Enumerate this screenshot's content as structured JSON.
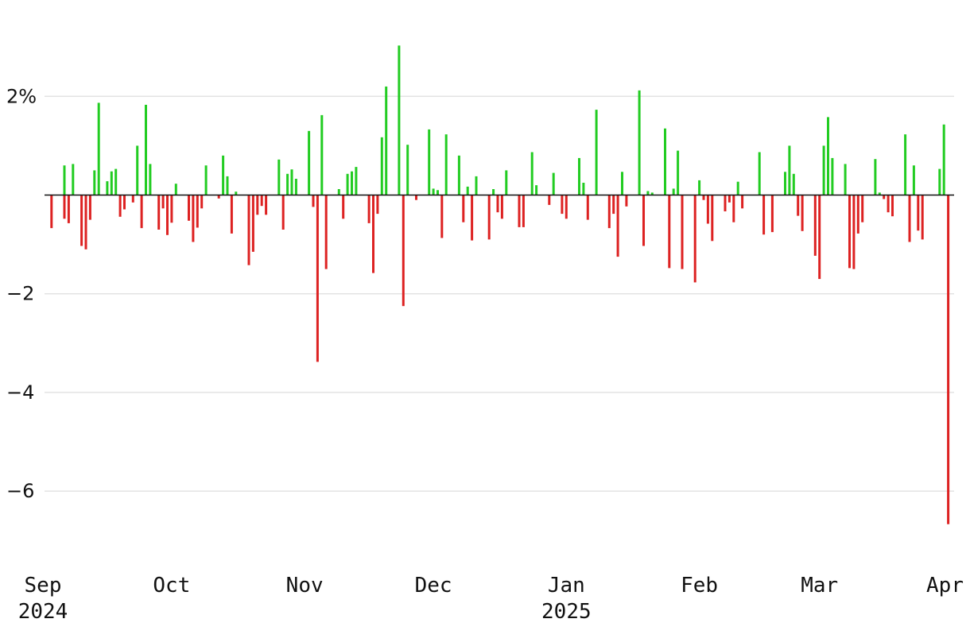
{
  "chart_data": {
    "type": "bar",
    "title": "",
    "xlabel": "",
    "ylabel": "",
    "ylim": [
      -7.5,
      3.5
    ],
    "y_ticks": [
      {
        "value": 2,
        "label": "2%"
      },
      {
        "value": -2,
        "label": "−2"
      },
      {
        "value": -4,
        "label": "−4"
      },
      {
        "value": -6,
        "label": "−6"
      }
    ],
    "x_ticks": [
      {
        "date": "2024-09-01",
        "label": "Sep",
        "year": "2024"
      },
      {
        "date": "2024-10-01",
        "label": "Oct",
        "year": ""
      },
      {
        "date": "2024-11-01",
        "label": "Nov",
        "year": ""
      },
      {
        "date": "2024-12-01",
        "label": "Dec",
        "year": ""
      },
      {
        "date": "2025-01-01",
        "label": "Jan",
        "year": "2025"
      },
      {
        "date": "2025-02-01",
        "label": "Feb",
        "year": ""
      },
      {
        "date": "2025-03-01",
        "label": "Mar",
        "year": ""
      },
      {
        "date": "2025-04-01",
        "label": "Apr",
        "year": ""
      }
    ],
    "grid": true,
    "colors": {
      "positive": "#22cc22",
      "negative": "#dd2222"
    },
    "points": [
      {
        "x": "2024-09-03",
        "y": -0.67
      },
      {
        "x": "2024-09-06",
        "y": 0.6
      },
      {
        "x": "2024-09-06",
        "y": -0.48
      },
      {
        "x": "2024-09-07",
        "y": -0.57
      },
      {
        "x": "2024-09-08",
        "y": 0.63
      },
      {
        "x": "2024-09-10",
        "y": -1.03
      },
      {
        "x": "2024-09-11",
        "y": -1.1
      },
      {
        "x": "2024-09-12",
        "y": -0.5
      },
      {
        "x": "2024-09-13",
        "y": 0.5
      },
      {
        "x": "2024-09-14",
        "y": 1.87
      },
      {
        "x": "2024-09-16",
        "y": 0.28
      },
      {
        "x": "2024-09-17",
        "y": 0.48
      },
      {
        "x": "2024-09-18",
        "y": 0.53
      },
      {
        "x": "2024-09-19",
        "y": -0.44
      },
      {
        "x": "2024-09-20",
        "y": -0.29
      },
      {
        "x": "2024-09-22",
        "y": -0.15
      },
      {
        "x": "2024-09-23",
        "y": 1.0
      },
      {
        "x": "2024-09-24",
        "y": -0.67
      },
      {
        "x": "2024-09-25",
        "y": 1.83
      },
      {
        "x": "2024-09-26",
        "y": 0.63
      },
      {
        "x": "2024-09-28",
        "y": -0.7
      },
      {
        "x": "2024-09-29",
        "y": -0.27
      },
      {
        "x": "2024-09-30",
        "y": -0.81
      },
      {
        "x": "2024-10-01",
        "y": -0.56
      },
      {
        "x": "2024-10-02",
        "y": 0.23
      },
      {
        "x": "2024-10-05",
        "y": -0.52
      },
      {
        "x": "2024-10-06",
        "y": -0.95
      },
      {
        "x": "2024-10-07",
        "y": -0.66
      },
      {
        "x": "2024-10-08",
        "y": -0.27
      },
      {
        "x": "2024-10-09",
        "y": 0.6
      },
      {
        "x": "2024-10-12",
        "y": -0.07
      },
      {
        "x": "2024-10-13",
        "y": 0.8
      },
      {
        "x": "2024-10-14",
        "y": 0.38
      },
      {
        "x": "2024-10-15",
        "y": -0.78
      },
      {
        "x": "2024-10-16",
        "y": 0.07
      },
      {
        "x": "2024-10-19",
        "y": -1.42
      },
      {
        "x": "2024-10-20",
        "y": -1.15
      },
      {
        "x": "2024-10-21",
        "y": -0.4
      },
      {
        "x": "2024-10-22",
        "y": -0.22
      },
      {
        "x": "2024-10-23",
        "y": -0.4
      },
      {
        "x": "2024-10-26",
        "y": 0.72
      },
      {
        "x": "2024-10-27",
        "y": -0.7
      },
      {
        "x": "2024-10-28",
        "y": 0.43
      },
      {
        "x": "2024-10-29",
        "y": 0.52
      },
      {
        "x": "2024-10-30",
        "y": 0.33
      },
      {
        "x": "2024-11-02",
        "y": 1.3
      },
      {
        "x": "2024-11-03",
        "y": -0.24
      },
      {
        "x": "2024-11-04",
        "y": -3.38
      },
      {
        "x": "2024-11-05",
        "y": 1.62
      },
      {
        "x": "2024-11-06",
        "y": -1.5
      },
      {
        "x": "2024-11-09",
        "y": 0.12
      },
      {
        "x": "2024-11-10",
        "y": -0.48
      },
      {
        "x": "2024-11-11",
        "y": 0.43
      },
      {
        "x": "2024-11-12",
        "y": 0.48
      },
      {
        "x": "2024-11-13",
        "y": 0.57
      },
      {
        "x": "2024-11-16",
        "y": -0.57
      },
      {
        "x": "2024-11-17",
        "y": -1.58
      },
      {
        "x": "2024-11-18",
        "y": -0.38
      },
      {
        "x": "2024-11-19",
        "y": 1.17
      },
      {
        "x": "2024-11-20",
        "y": 2.2
      },
      {
        "x": "2024-11-23",
        "y": 3.03
      },
      {
        "x": "2024-11-24",
        "y": -2.25
      },
      {
        "x": "2024-11-25",
        "y": 1.02
      },
      {
        "x": "2024-11-27",
        "y": -0.1
      },
      {
        "x": "2024-11-30",
        "y": 1.33
      },
      {
        "x": "2024-12-01",
        "y": 0.13
      },
      {
        "x": "2024-12-02",
        "y": 0.1
      },
      {
        "x": "2024-12-03",
        "y": -0.87
      },
      {
        "x": "2024-12-04",
        "y": 1.23
      },
      {
        "x": "2024-12-07",
        "y": 0.8
      },
      {
        "x": "2024-12-08",
        "y": -0.55
      },
      {
        "x": "2024-12-09",
        "y": 0.17
      },
      {
        "x": "2024-12-10",
        "y": -0.92
      },
      {
        "x": "2024-12-11",
        "y": 0.38
      },
      {
        "x": "2024-12-14",
        "y": -0.9
      },
      {
        "x": "2024-12-15",
        "y": 0.12
      },
      {
        "x": "2024-12-16",
        "y": -0.35
      },
      {
        "x": "2024-12-17",
        "y": -0.48
      },
      {
        "x": "2024-12-18",
        "y": 0.5
      },
      {
        "x": "2024-12-21",
        "y": -0.65
      },
      {
        "x": "2024-12-22",
        "y": -0.65
      },
      {
        "x": "2024-12-24",
        "y": 0.87
      },
      {
        "x": "2024-12-25",
        "y": 0.2
      },
      {
        "x": "2024-12-28",
        "y": -0.2
      },
      {
        "x": "2024-12-29",
        "y": 0.45
      },
      {
        "x": "2024-12-31",
        "y": -0.38
      },
      {
        "x": "2025-01-01",
        "y": -0.48
      },
      {
        "x": "2025-01-04",
        "y": 0.75
      },
      {
        "x": "2025-01-05",
        "y": 0.25
      },
      {
        "x": "2025-01-06",
        "y": -0.5
      },
      {
        "x": "2025-01-08",
        "y": 1.73
      },
      {
        "x": "2025-01-11",
        "y": -0.67
      },
      {
        "x": "2025-01-12",
        "y": -0.38
      },
      {
        "x": "2025-01-13",
        "y": -1.25
      },
      {
        "x": "2025-01-14",
        "y": 0.47
      },
      {
        "x": "2025-01-15",
        "y": -0.23
      },
      {
        "x": "2025-01-18",
        "y": 2.12
      },
      {
        "x": "2025-01-19",
        "y": -1.03
      },
      {
        "x": "2025-01-20",
        "y": 0.08
      },
      {
        "x": "2025-01-21",
        "y": 0.05
      },
      {
        "x": "2025-01-24",
        "y": 1.35
      },
      {
        "x": "2025-01-25",
        "y": -1.48
      },
      {
        "x": "2025-01-26",
        "y": 0.13
      },
      {
        "x": "2025-01-27",
        "y": 0.9
      },
      {
        "x": "2025-01-28",
        "y": -1.5
      },
      {
        "x": "2025-01-31",
        "y": -1.77
      },
      {
        "x": "2025-02-01",
        "y": 0.3
      },
      {
        "x": "2025-02-02",
        "y": -0.1
      },
      {
        "x": "2025-02-03",
        "y": -0.58
      },
      {
        "x": "2025-02-04",
        "y": -0.93
      },
      {
        "x": "2025-02-07",
        "y": -0.33
      },
      {
        "x": "2025-02-08",
        "y": -0.15
      },
      {
        "x": "2025-02-09",
        "y": -0.55
      },
      {
        "x": "2025-02-10",
        "y": 0.27
      },
      {
        "x": "2025-02-11",
        "y": -0.27
      },
      {
        "x": "2025-02-15",
        "y": 0.87
      },
      {
        "x": "2025-02-16",
        "y": -0.8
      },
      {
        "x": "2025-02-18",
        "y": -0.75
      },
      {
        "x": "2025-02-21",
        "y": 0.47
      },
      {
        "x": "2025-02-22",
        "y": 1.0
      },
      {
        "x": "2025-02-23",
        "y": 0.43
      },
      {
        "x": "2025-02-24",
        "y": -0.42
      },
      {
        "x": "2025-02-25",
        "y": -0.73
      },
      {
        "x": "2025-02-28",
        "y": -1.23
      },
      {
        "x": "2025-03-01",
        "y": -1.7
      },
      {
        "x": "2025-03-02",
        "y": 1.0
      },
      {
        "x": "2025-03-03",
        "y": 1.58
      },
      {
        "x": "2025-03-04",
        "y": 0.75
      },
      {
        "x": "2025-03-07",
        "y": 0.63
      },
      {
        "x": "2025-03-08",
        "y": -1.48
      },
      {
        "x": "2025-03-09",
        "y": -1.5
      },
      {
        "x": "2025-03-10",
        "y": -0.78
      },
      {
        "x": "2025-03-11",
        "y": -0.55
      },
      {
        "x": "2025-03-14",
        "y": 0.73
      },
      {
        "x": "2025-03-15",
        "y": 0.05
      },
      {
        "x": "2025-03-16",
        "y": -0.08
      },
      {
        "x": "2025-03-17",
        "y": -0.35
      },
      {
        "x": "2025-03-18",
        "y": -0.43
      },
      {
        "x": "2025-03-21",
        "y": 1.23
      },
      {
        "x": "2025-03-22",
        "y": -0.95
      },
      {
        "x": "2025-03-23",
        "y": 0.6
      },
      {
        "x": "2025-03-24",
        "y": -0.72
      },
      {
        "x": "2025-03-25",
        "y": -0.9
      },
      {
        "x": "2025-03-29",
        "y": 0.53
      },
      {
        "x": "2025-03-30",
        "y": 1.43
      },
      {
        "x": "2025-03-31",
        "y": -6.67
      }
    ]
  }
}
